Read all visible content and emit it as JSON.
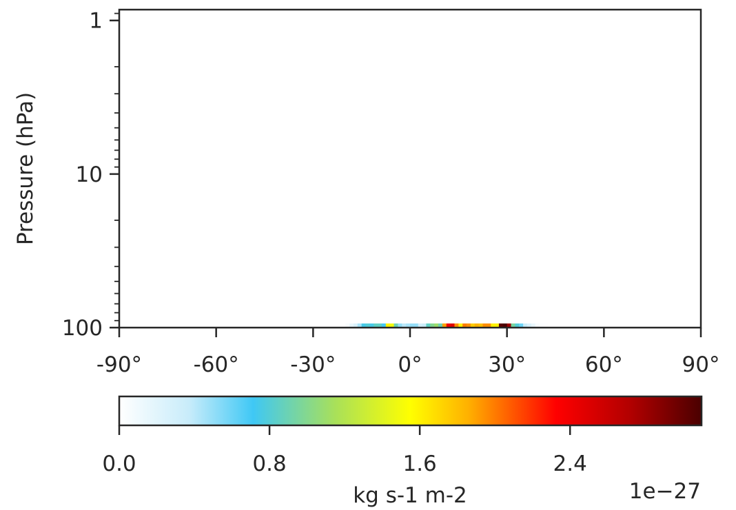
{
  "chart_data": {
    "type": "heatmap",
    "title": "",
    "xlabel": "",
    "ylabel": "Pressure (hPa)",
    "x_range": [
      -90,
      90
    ],
    "y_range": [
      0.85,
      100
    ],
    "y_scale": "log",
    "y_inverted": true,
    "grid": false,
    "x_ticks": [
      {
        "value": -90,
        "label": "-90°"
      },
      {
        "value": -60,
        "label": "-60°"
      },
      {
        "value": -30,
        "label": "-30°"
      },
      {
        "value": 0,
        "label": "0°"
      },
      {
        "value": 30,
        "label": "30°"
      },
      {
        "value": 60,
        "label": "60°"
      },
      {
        "value": 90,
        "label": "90°"
      }
    ],
    "y_ticks": [
      {
        "value": 1,
        "label": "1"
      },
      {
        "value": 10,
        "label": "10"
      },
      {
        "value": 100,
        "label": "100"
      }
    ],
    "pressure_level_hPa": 100,
    "cell_width_deg": 1.25,
    "latitudes_start": -20,
    "values_1e-27": [
      0.05,
      0.15,
      0.25,
      0.45,
      0.75,
      0.8,
      0.75,
      0.85,
      0.85,
      0.7,
      1.6,
      1.5,
      0.9,
      0.5,
      0.4,
      0.45,
      0.5,
      0.5,
      0.3,
      0.35,
      0.85,
      1.0,
      1.1,
      0.9,
      1.9,
      2.4,
      2.5,
      1.95,
      1.6,
      2.0,
      1.95,
      1.75,
      1.85,
      1.8,
      1.95,
      1.95,
      1.6,
      1.6,
      3.05,
      3.2,
      2.8,
      0.95,
      0.8,
      0.6,
      0.35,
      0.25,
      0.15,
      0.05,
      0.02,
      0.01
    ],
    "colorbar": {
      "label": "kg s-1 m-2",
      "offset": "1e−27",
      "min": 0.0,
      "max": 3.1,
      "ticks": [
        {
          "value": 0.0,
          "label": "0.0"
        },
        {
          "value": 0.8,
          "label": "0.8"
        },
        {
          "value": 1.6,
          "label": "1.6"
        },
        {
          "value": 2.4,
          "label": "2.4"
        }
      ],
      "colormap": [
        {
          "pos": 0.0,
          "color": "#ffffff"
        },
        {
          "pos": 0.12,
          "color": "#c8ecfa"
        },
        {
          "pos": 0.23,
          "color": "#3fc8f5"
        },
        {
          "pos": 0.37,
          "color": "#a8e05a"
        },
        {
          "pos": 0.5,
          "color": "#ffff00"
        },
        {
          "pos": 0.6,
          "color": "#ffb000"
        },
        {
          "pos": 0.75,
          "color": "#ff0000"
        },
        {
          "pos": 0.88,
          "color": "#b00000"
        },
        {
          "pos": 1.0,
          "color": "#4a0000"
        }
      ]
    }
  }
}
